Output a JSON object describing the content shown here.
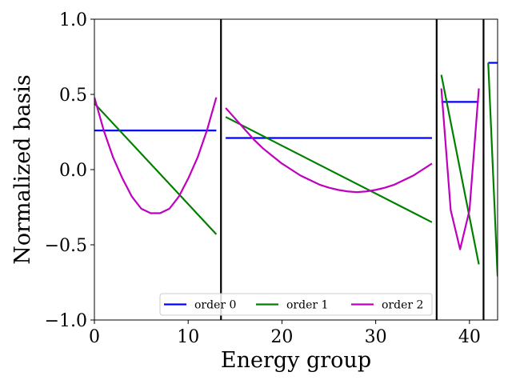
{
  "chart_data": {
    "type": "line",
    "xlabel": "Energy group",
    "ylabel": "Normalized basis",
    "xlim": [
      0,
      43
    ],
    "ylim": [
      -1.0,
      1.0
    ],
    "x_ticks": [
      0,
      10,
      20,
      30,
      40
    ],
    "y_ticks": [
      -1.0,
      -0.5,
      0.0,
      0.5,
      1.0
    ],
    "x_tick_labels": [
      "0",
      "10",
      "20",
      "30",
      "40"
    ],
    "y_tick_labels": [
      "−1.0",
      "−0.5",
      "0.0",
      "0.5",
      "1.0"
    ],
    "grid": false,
    "legend_position": "lower-center",
    "boundaries": [
      13.5,
      36.5,
      41.5
    ],
    "series": [
      {
        "name": "order 0",
        "color": "#0000ff",
        "segments": [
          {
            "x": [
              0,
              13
            ],
            "y": [
              0.26,
              0.26
            ]
          },
          {
            "x": [
              14,
              36
            ],
            "y": [
              0.21,
              0.21
            ]
          },
          {
            "x": [
              37,
              41
            ],
            "y": [
              0.45,
              0.45
            ]
          },
          {
            "x": [
              42,
              43
            ],
            "y": [
              0.71,
              0.71
            ]
          }
        ]
      },
      {
        "name": "order 1",
        "color": "#008000",
        "segments": [
          {
            "x": [
              0,
              13
            ],
            "y": [
              0.44,
              -0.43
            ]
          },
          {
            "x": [
              14,
              36
            ],
            "y": [
              0.35,
              -0.35
            ]
          },
          {
            "x": [
              37,
              41
            ],
            "y": [
              0.63,
              -0.63
            ]
          },
          {
            "x": [
              42,
              43
            ],
            "y": [
              0.71,
              -0.71
            ]
          }
        ]
      },
      {
        "name": "order 2",
        "color": "#bf00bf",
        "segments": [
          {
            "x": [
              0,
              1,
              2,
              3,
              4,
              5,
              6,
              7,
              8,
              9,
              10,
              11,
              12,
              13
            ],
            "y": [
              0.48,
              0.26,
              0.08,
              -0.06,
              -0.18,
              -0.26,
              -0.29,
              -0.29,
              -0.26,
              -0.18,
              -0.06,
              0.08,
              0.26,
              0.48
            ]
          },
          {
            "x": [
              14,
              15,
              16,
              17,
              18,
              19,
              20,
              21,
              22,
              23,
              24,
              25,
              26,
              27,
              28,
              29,
              30,
              31,
              32,
              33,
              34,
              35,
              36
            ],
            "y": [
              0.41,
              0.34,
              0.27,
              0.2,
              0.14,
              0.09,
              0.04,
              0.0,
              -0.04,
              -0.07,
              -0.1,
              -0.12,
              -0.135,
              -0.145,
              -0.15,
              -0.145,
              -0.135,
              -0.12,
              -0.1,
              -0.07,
              -0.04,
              0.0,
              0.04
            ]
          },
          {
            "x": [
              37,
              38,
              39,
              40,
              41
            ],
            "y": [
              0.54,
              -0.27,
              -0.53,
              -0.27,
              0.54
            ]
          }
        ]
      }
    ]
  }
}
